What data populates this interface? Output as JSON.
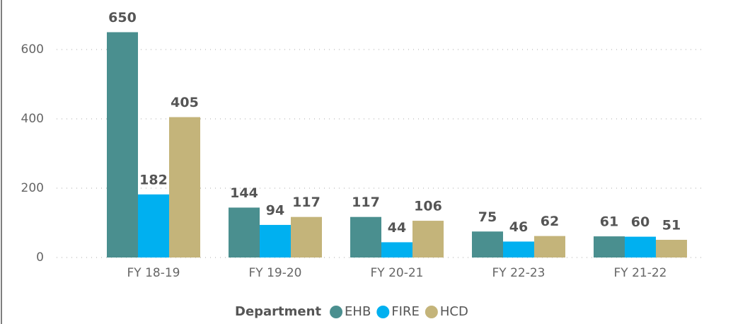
{
  "chart_data": {
    "type": "bar",
    "categories": [
      "FY 18-19",
      "FY 19-20",
      "FY 20-21",
      "FY 22-23",
      "FY 21-22"
    ],
    "series": [
      {
        "name": "EHB",
        "color": "#4a8f8f",
        "values": [
          650,
          144,
          117,
          75,
          61
        ]
      },
      {
        "name": "FIRE",
        "color": "#00b0f0",
        "values": [
          182,
          94,
          44,
          46,
          60
        ]
      },
      {
        "name": "HCD",
        "color": "#c4b47a",
        "values": [
          405,
          117,
          106,
          62,
          51
        ]
      }
    ],
    "legend_title": "Department",
    "ylim": [
      0,
      700
    ],
    "yticks": [
      0,
      200,
      400,
      600
    ],
    "grid": true
  }
}
